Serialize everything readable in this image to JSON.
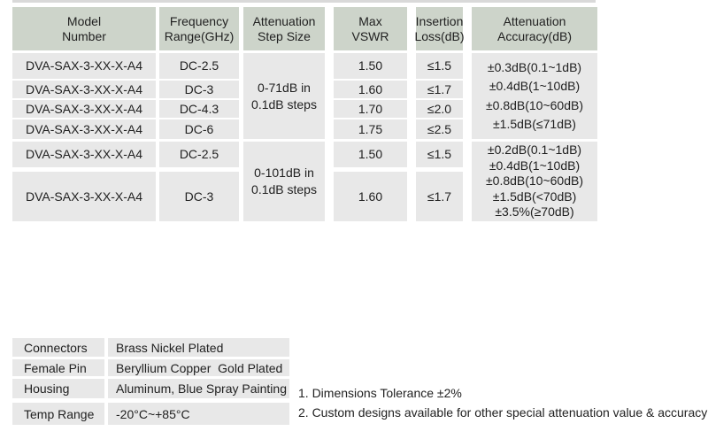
{
  "colors": {
    "header_bg": "#cdd4ca",
    "cell_bg": "#e8e8e8",
    "strip_bg": "#d9d9d9",
    "text": "#212121"
  },
  "spec_table": {
    "headers": [
      {
        "line1": "Model",
        "line2": "Number"
      },
      {
        "line1": "Frequency",
        "line2": "Range(GHz)"
      },
      {
        "line1": "Attenuation",
        "line2": "Step Size"
      },
      {
        "line1": "Max",
        "line2": "VSWR"
      },
      {
        "line1": "Insertion",
        "line2": "Loss(dB)"
      },
      {
        "line1": "Attenuation",
        "line2": "Accuracy(dB)"
      }
    ],
    "group1": {
      "step_size": {
        "line1": "0-71dB in",
        "line2": "0.1dB steps"
      },
      "accuracy": [
        "±0.3dB(0.1~1dB)",
        "±0.4dB(1~10dB)",
        "±0.8dB(10~60dB)",
        "±1.5dB(≤71dB)"
      ],
      "rows": [
        {
          "model": "DVA-SAX-3-XX-X-A4",
          "frequency": "DC-2.5",
          "max_vswr": "1.50",
          "insertion_loss": "≤1.5"
        },
        {
          "model": "DVA-SAX-3-XX-X-A4",
          "frequency": "DC-3",
          "max_vswr": "1.60",
          "insertion_loss": "≤1.7"
        },
        {
          "model": "DVA-SAX-3-XX-X-A4",
          "frequency": "DC-4.3",
          "max_vswr": "1.70",
          "insertion_loss": "≤2.0"
        },
        {
          "model": "DVA-SAX-3-XX-X-A4",
          "frequency": "DC-6",
          "max_vswr": "1.75",
          "insertion_loss": "≤2.5"
        }
      ]
    },
    "group2": {
      "step_size": {
        "line1": "0-101dB in",
        "line2": "0.1dB steps"
      },
      "accuracy": [
        "±0.2dB(0.1~1dB)",
        "±0.4dB(1~10dB)",
        "±0.8dB(10~60dB)",
        "±1.5dB(<70dB)",
        "±3.5%(≥70dB)"
      ],
      "rows": [
        {
          "model": "DVA-SAX-3-XX-X-A4",
          "frequency": "DC-2.5",
          "max_vswr": "1.50",
          "insertion_loss": "≤1.5"
        },
        {
          "model": "DVA-SAX-3-XX-X-A4",
          "frequency": "DC-3",
          "max_vswr": "1.60",
          "insertion_loss": "≤1.7"
        }
      ]
    }
  },
  "materials_table": {
    "rows": [
      {
        "label": "Connectors",
        "value": "Brass Nickel Plated"
      },
      {
        "label": "Female Pin",
        "value": "Beryllium Copper  Gold Plated"
      },
      {
        "label": "Housing",
        "value": "Aluminum, Blue Spray Painting"
      },
      {
        "label": "Temp Range",
        "value": "-20°C~+85°C"
      }
    ]
  },
  "notes": [
    "1. Dimensions Tolerance ±2%",
    "2. Custom designs available for other special attenuation value & accuracy"
  ]
}
